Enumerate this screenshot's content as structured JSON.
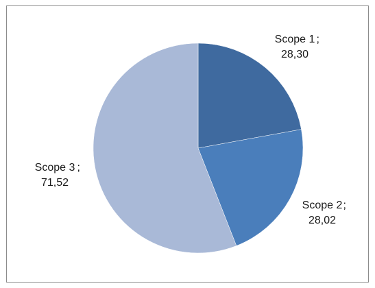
{
  "chart_data": {
    "type": "pie",
    "title": "",
    "slices": [
      {
        "label": "Scope 1",
        "value_label": "28,30",
        "value": 28.3,
        "color": "#3F6A9F"
      },
      {
        "label": "Scope 2",
        "value_label": "28,02",
        "value": 28.02,
        "color": "#4A7EBB"
      },
      {
        "label": "Scope 3",
        "value_label": "71,52",
        "value": 71.52,
        "color": "#A9B9D7"
      }
    ],
    "start_angle_deg": 0,
    "direction": "clockwise",
    "legend": "none"
  }
}
